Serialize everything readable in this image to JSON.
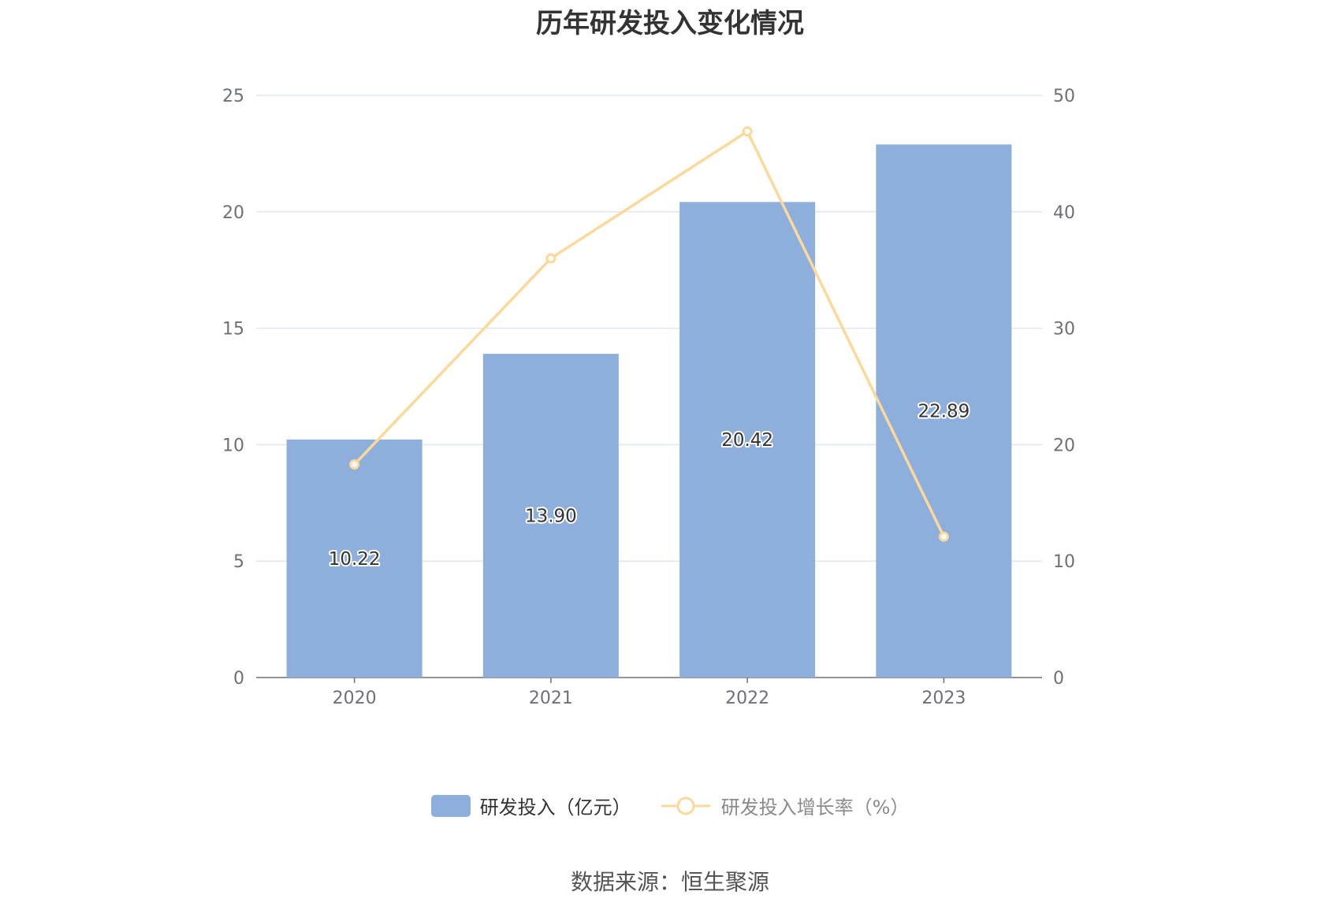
{
  "chart_data": {
    "type": "bar",
    "title": "历年研发投入变化情况",
    "categories": [
      "2020",
      "2021",
      "2022",
      "2023"
    ],
    "series": [
      {
        "name": "研发投入（亿元）",
        "type": "bar",
        "axis": "left",
        "color": "#8eaedb",
        "values": [
          10.22,
          13.9,
          20.42,
          22.89
        ],
        "labels": [
          "10.22",
          "13.90",
          "20.42",
          "22.89"
        ]
      },
      {
        "name": "研发投入增长率（%）",
        "type": "line",
        "axis": "right",
        "color": "#fbd99a",
        "values": [
          18.3,
          36.0,
          46.9,
          12.1
        ]
      }
    ],
    "y_left": {
      "min": 0,
      "max": 25,
      "ticks": [
        "0",
        "5",
        "10",
        "15",
        "20",
        "25"
      ]
    },
    "y_right": {
      "min": 0,
      "max": 50,
      "ticks": [
        "0",
        "10",
        "20",
        "30",
        "40",
        "50"
      ]
    },
    "grid": true,
    "legend_position": "bottom",
    "source": "数据来源：恒生聚源"
  }
}
